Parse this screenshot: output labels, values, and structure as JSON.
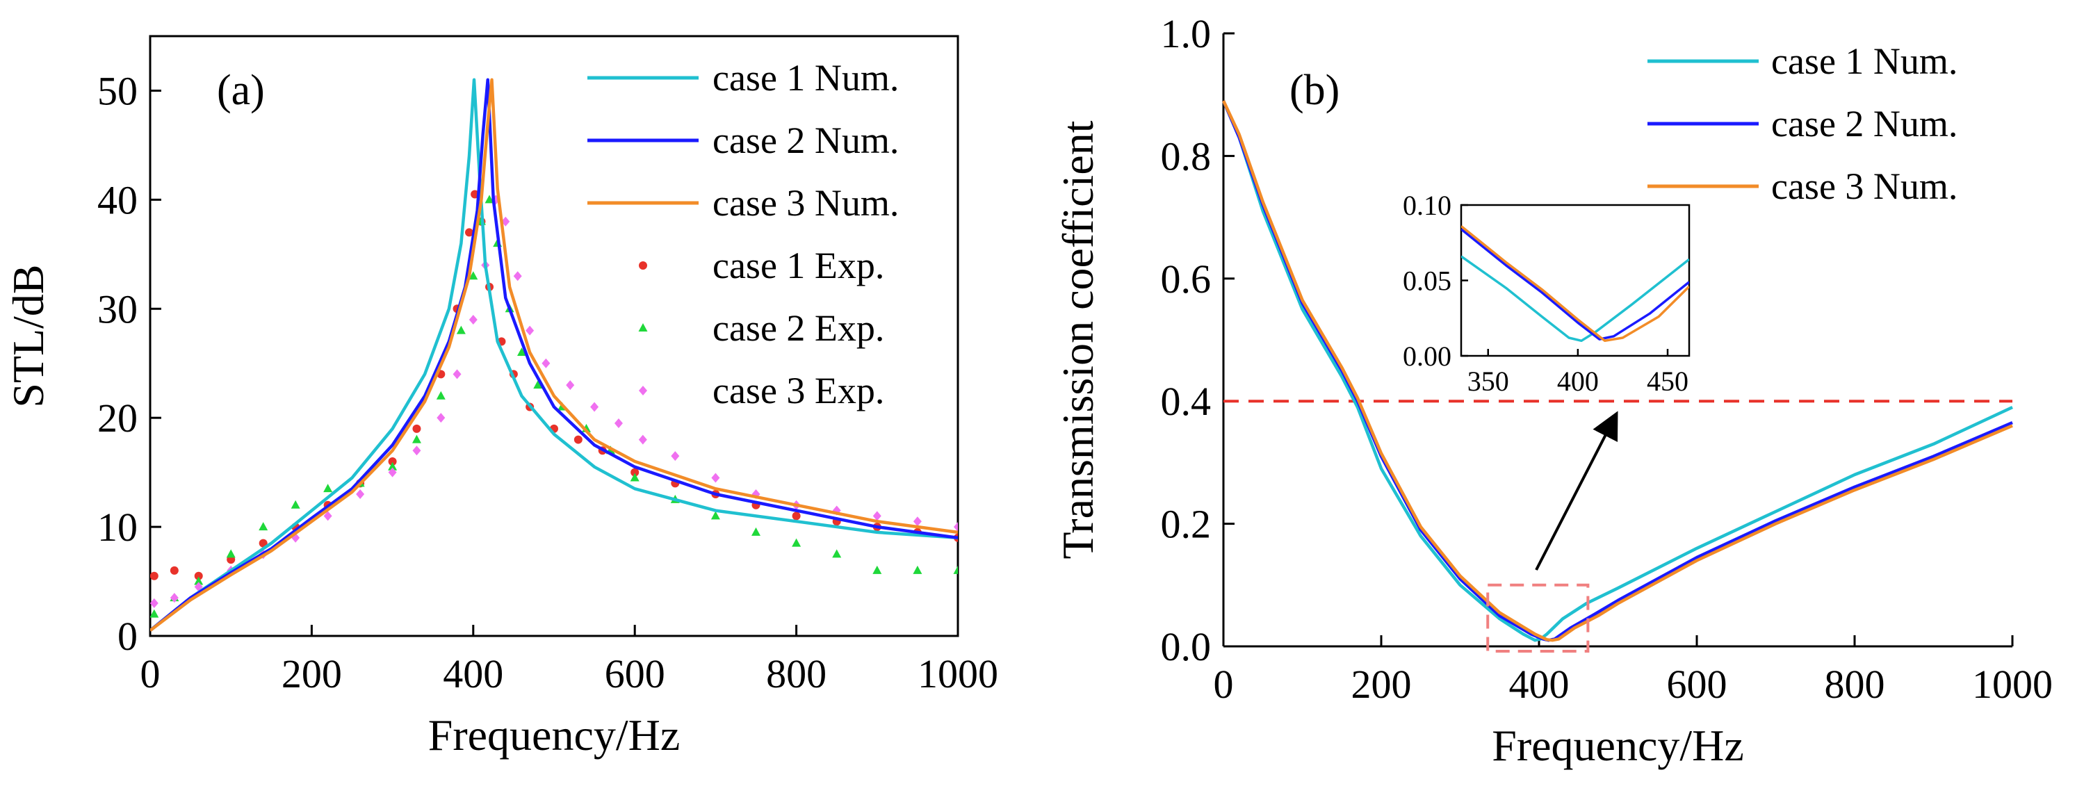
{
  "chart_data": [
    {
      "type": "line",
      "panel_label": "(a)",
      "xlabel": "Frequency/Hz",
      "ylabel": "STL/dB",
      "xlim": [
        0,
        1000
      ],
      "ylim": [
        0,
        55
      ],
      "xticks": [
        0,
        200,
        400,
        600,
        800,
        1000
      ],
      "yticks": [
        0,
        10,
        20,
        30,
        40,
        50
      ],
      "grid": false,
      "legend_position": "top-right",
      "series": [
        {
          "name": "case 1 Num.",
          "kind": "line",
          "color": "#20c0d0",
          "x": [
            0,
            50,
            100,
            150,
            200,
            250,
            300,
            340,
            370,
            385,
            395,
            401,
            408,
            415,
            430,
            460,
            500,
            550,
            600,
            700,
            800,
            900,
            1000
          ],
          "y": [
            0.5,
            3.5,
            6,
            8.5,
            11.5,
            14.5,
            19,
            24,
            30,
            36,
            44,
            51,
            42,
            34,
            27,
            22,
            18.5,
            15.5,
            13.5,
            11.5,
            10.5,
            9.5,
            9
          ]
        },
        {
          "name": "case 2 Num.",
          "kind": "line",
          "color": "#1a1aff",
          "x": [
            0,
            50,
            100,
            150,
            200,
            250,
            300,
            340,
            370,
            390,
            405,
            412,
            418,
            425,
            440,
            470,
            500,
            550,
            600,
            700,
            800,
            900,
            1000
          ],
          "y": [
            0.5,
            3.5,
            5.8,
            8,
            10.8,
            13.5,
            17.5,
            22,
            27,
            32,
            39,
            46,
            51,
            40,
            31,
            25,
            21,
            17.5,
            15.5,
            13,
            11.5,
            10,
            9
          ]
        },
        {
          "name": "case 3 Num.",
          "kind": "line",
          "color": "#f28c28",
          "x": [
            0,
            50,
            100,
            150,
            200,
            250,
            300,
            340,
            370,
            395,
            410,
            418,
            423,
            430,
            445,
            470,
            500,
            550,
            600,
            700,
            800,
            900,
            1000
          ],
          "y": [
            0.5,
            3.3,
            5.6,
            7.8,
            10.5,
            13.2,
            17,
            21.5,
            26.5,
            33,
            40,
            47,
            51,
            41,
            32,
            26,
            22,
            18,
            16,
            13.5,
            12,
            10.5,
            9.5
          ]
        },
        {
          "name": "case 1 Exp.",
          "kind": "scatter",
          "color": "#e8322a",
          "marker": "dot",
          "x": [
            5,
            30,
            60,
            100,
            140,
            180,
            220,
            260,
            300,
            330,
            360,
            380,
            395,
            402,
            410,
            420,
            435,
            450,
            470,
            500,
            530,
            560,
            600,
            650,
            700,
            750,
            800,
            850,
            900,
            950,
            1000
          ],
          "y": [
            5.5,
            6,
            5.5,
            7,
            8.5,
            10,
            12,
            14,
            16,
            19,
            24,
            30,
            37,
            40.5,
            38,
            32,
            27,
            24,
            21,
            19,
            18,
            17,
            15,
            14,
            13,
            12,
            11,
            10.5,
            10,
            9.5,
            9
          ]
        },
        {
          "name": "case 2 Exp.",
          "kind": "scatter",
          "color": "#1fd83a",
          "marker": "triangle",
          "x": [
            5,
            30,
            60,
            100,
            140,
            180,
            220,
            260,
            300,
            330,
            360,
            385,
            400,
            410,
            420,
            430,
            445,
            460,
            480,
            510,
            540,
            570,
            600,
            650,
            700,
            750,
            800,
            850,
            900,
            950,
            1000
          ],
          "y": [
            2,
            3.5,
            5,
            7.5,
            10,
            12,
            13.5,
            14,
            15.5,
            18,
            22,
            28,
            33,
            38,
            40,
            36,
            30,
            26,
            23,
            21,
            19,
            17,
            14.5,
            12.5,
            11,
            9.5,
            8.5,
            7.5,
            6,
            6,
            6
          ]
        },
        {
          "name": "case 3 Exp.",
          "kind": "scatter",
          "color": "#f070f0",
          "marker": "diamond",
          "x": [
            5,
            30,
            60,
            100,
            140,
            180,
            220,
            260,
            300,
            330,
            360,
            380,
            400,
            415,
            428,
            440,
            455,
            470,
            490,
            520,
            550,
            580,
            610,
            650,
            700,
            750,
            800,
            850,
            900,
            950,
            1000
          ],
          "y": [
            3,
            3.5,
            4.5,
            6,
            7.5,
            9,
            11,
            13,
            15,
            17,
            20,
            24,
            29,
            34,
            40,
            38,
            33,
            28,
            25,
            23,
            21,
            19.5,
            18,
            16.5,
            14.5,
            13,
            12,
            11.5,
            11,
            10.5,
            10
          ]
        }
      ]
    },
    {
      "type": "line",
      "panel_label": "(b)",
      "xlabel": "Frequency/Hz",
      "ylabel": "Transmission coefficient",
      "xlim": [
        0,
        1000
      ],
      "ylim": [
        0,
        1.0
      ],
      "xticks": [
        0,
        200,
        400,
        600,
        800,
        1000
      ],
      "yticks": [
        "0.0",
        "0.2",
        "0.4",
        "0.6",
        "0.8",
        "1.0"
      ],
      "grid": false,
      "legend_position": "top-right",
      "threshold": {
        "y": 0.4,
        "color": "#e8322a",
        "style": "dashed"
      },
      "highlight_box": {
        "x": [
          335,
          462
        ],
        "y": [
          0,
          0.1
        ],
        "color": "#f08080",
        "style": "dashed"
      },
      "series": [
        {
          "name": "case 1 Num.",
          "color": "#20c0d0",
          "x": [
            0,
            20,
            50,
            100,
            150,
            170,
            200,
            250,
            300,
            350,
            380,
            395,
            402,
            410,
            430,
            460,
            500,
            600,
            700,
            800,
            900,
            1000
          ],
          "y": [
            0.89,
            0.83,
            0.71,
            0.55,
            0.44,
            0.39,
            0.29,
            0.18,
            0.1,
            0.045,
            0.02,
            0.01,
            0.012,
            0.02,
            0.045,
            0.07,
            0.095,
            0.16,
            0.22,
            0.28,
            0.33,
            0.39
          ]
        },
        {
          "name": "case 2 Num.",
          "color": "#1a1aff",
          "x": [
            0,
            20,
            50,
            100,
            150,
            170,
            200,
            250,
            300,
            350,
            390,
            405,
            412,
            420,
            440,
            470,
            500,
            600,
            700,
            800,
            900,
            1000
          ],
          "y": [
            0.89,
            0.83,
            0.72,
            0.56,
            0.45,
            0.4,
            0.31,
            0.19,
            0.11,
            0.05,
            0.02,
            0.012,
            0.01,
            0.012,
            0.03,
            0.052,
            0.075,
            0.145,
            0.205,
            0.26,
            0.31,
            0.365
          ]
        },
        {
          "name": "case 3 Num.",
          "color": "#f28c28",
          "x": [
            0,
            20,
            50,
            100,
            150,
            170,
            200,
            250,
            300,
            350,
            395,
            410,
            417,
            425,
            445,
            475,
            500,
            600,
            700,
            800,
            900,
            1000
          ],
          "y": [
            0.89,
            0.835,
            0.725,
            0.565,
            0.455,
            0.405,
            0.315,
            0.195,
            0.115,
            0.055,
            0.02,
            0.011,
            0.01,
            0.012,
            0.03,
            0.05,
            0.07,
            0.14,
            0.2,
            0.255,
            0.305,
            0.36
          ]
        }
      ],
      "inset": {
        "xlim": [
          335,
          462
        ],
        "ylim": [
          0,
          0.1
        ],
        "xticks": [
          350,
          400,
          450
        ],
        "yticks": [
          "0.00",
          "0.05",
          "0.10"
        ],
        "series": [
          {
            "color": "#20c0d0",
            "x": [
              335,
              360,
              380,
              395,
              402,
              410,
              430,
              462
            ],
            "y": [
              0.066,
              0.045,
              0.026,
              0.012,
              0.01,
              0.016,
              0.034,
              0.064
            ]
          },
          {
            "color": "#1a1aff",
            "x": [
              335,
              360,
              380,
              400,
              412,
              420,
              440,
              462
            ],
            "y": [
              0.084,
              0.06,
              0.042,
              0.022,
              0.011,
              0.013,
              0.028,
              0.049
            ]
          },
          {
            "color": "#f28c28",
            "x": [
              335,
              360,
              380,
              400,
              415,
              425,
              445,
              462
            ],
            "y": [
              0.086,
              0.062,
              0.044,
              0.024,
              0.01,
              0.012,
              0.026,
              0.046
            ]
          }
        ]
      }
    }
  ]
}
